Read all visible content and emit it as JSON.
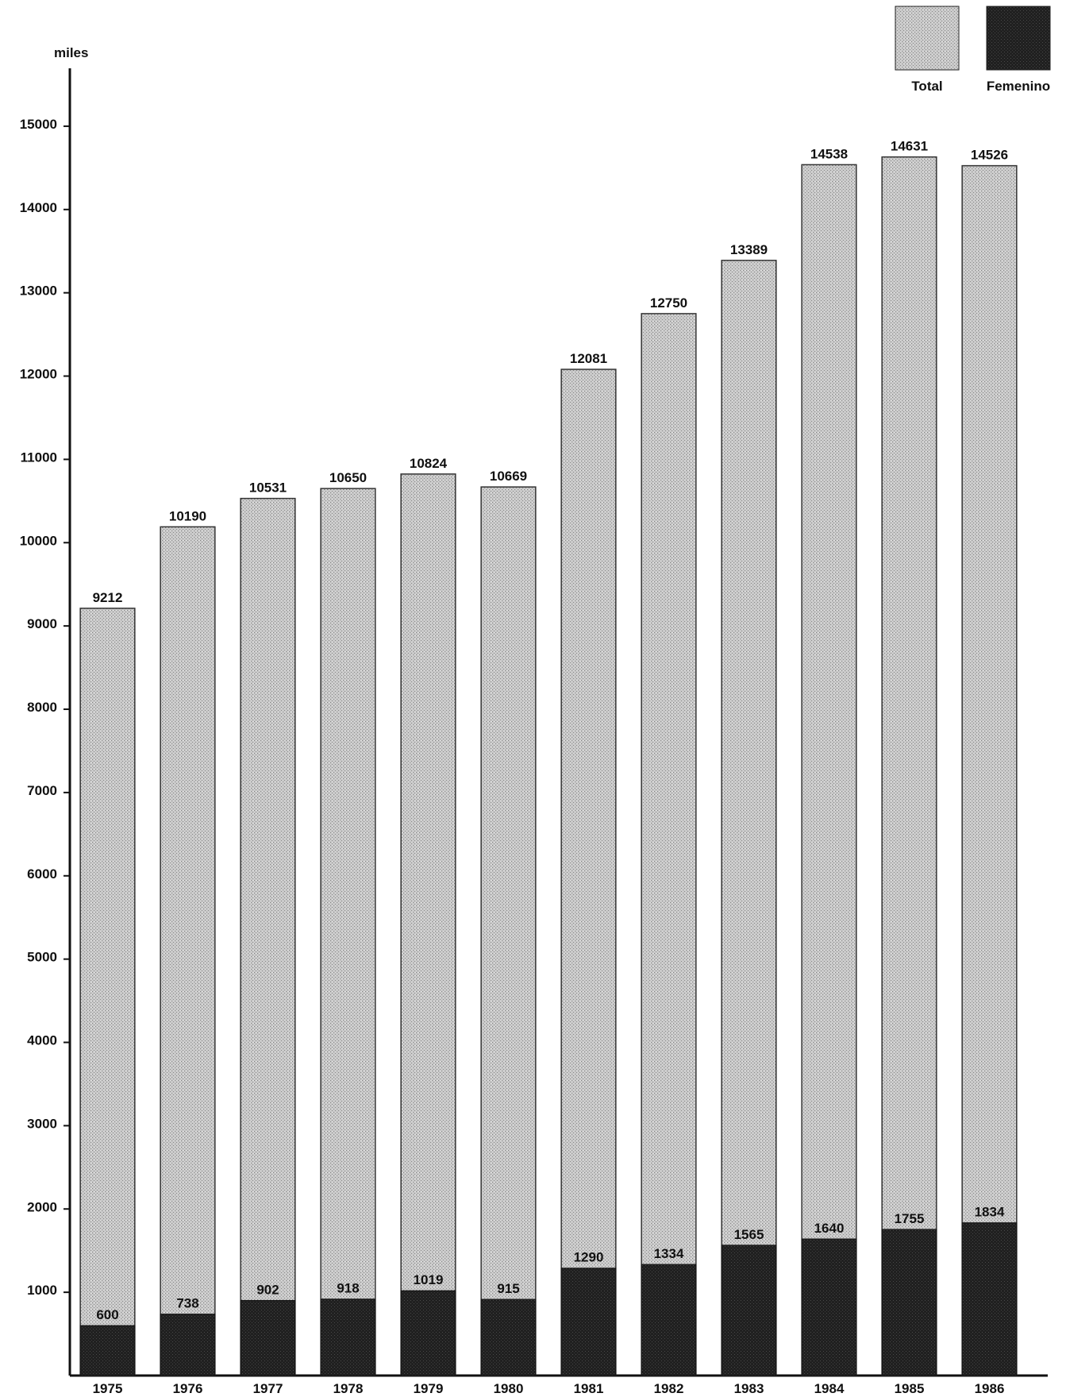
{
  "chart_data": {
    "type": "bar",
    "stacked": true,
    "ylabel": "miles",
    "ylim": [
      0,
      15600
    ],
    "yticks": [
      1000,
      2000,
      3000,
      4000,
      5000,
      6000,
      7000,
      8000,
      9000,
      10000,
      11000,
      12000,
      13000,
      14000,
      15000
    ],
    "categories": [
      "1975",
      "1976",
      "1977",
      "1978",
      "1979",
      "1980",
      "1981",
      "1982",
      "1983",
      "1984",
      "1985",
      "1986"
    ],
    "series": [
      {
        "name": "Total",
        "color": "#c4c4c4",
        "values": [
          9212,
          10190,
          10531,
          10650,
          10824,
          10669,
          12081,
          12750,
          13389,
          14538,
          14631,
          14526
        ]
      },
      {
        "name": "Femenino",
        "color": "#1e1e1e",
        "values": [
          600,
          738,
          902,
          918,
          1019,
          915,
          1290,
          1334,
          1565,
          1640,
          1755,
          1834
        ]
      }
    ],
    "legend_position": "top-right",
    "grid": false
  }
}
